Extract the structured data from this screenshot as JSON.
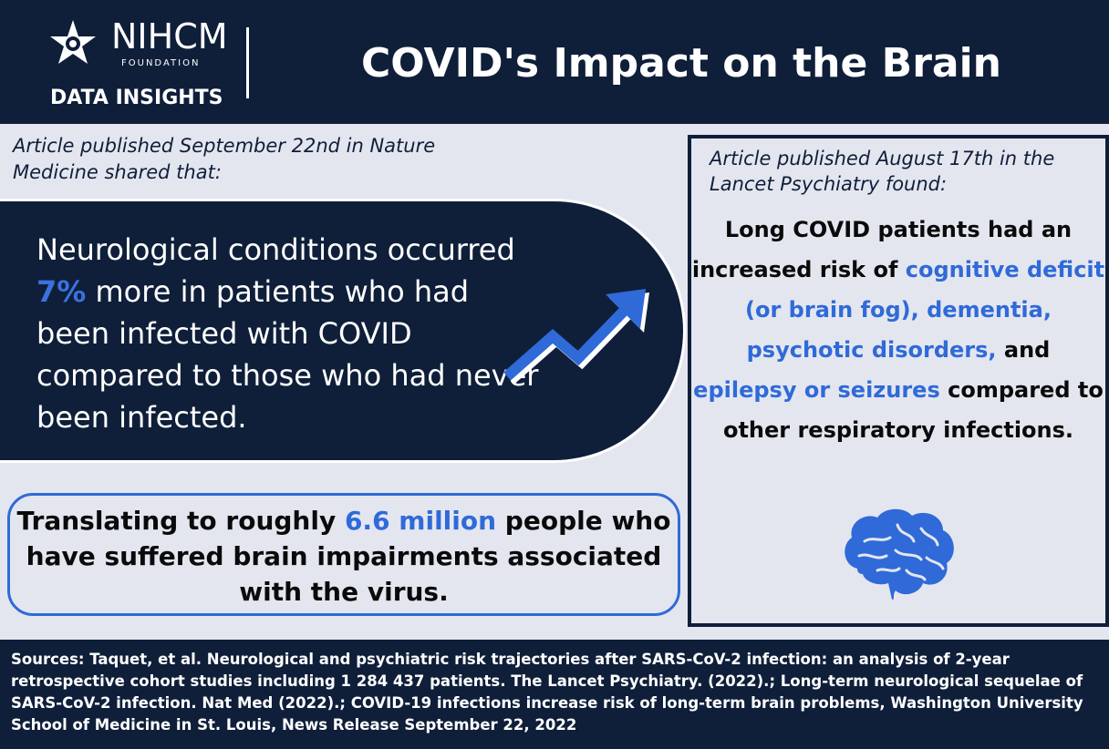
{
  "header": {
    "logo_name": "NIHCM",
    "logo_sub": "FOUNDATION",
    "logo_tagline": "DATA INSIGHTS",
    "title": "COVID's Impact on the Brain"
  },
  "left": {
    "intro": "Article published September 22nd in Nature Medicine shared that:",
    "pill": {
      "line1": "Neurological conditions occurred",
      "percent": "7%",
      "line2_rest": " more in patients who had been infected with COVID compared to those who had never been infected."
    },
    "stat": {
      "prefix": "Translating to roughly ",
      "highlight": "6.6 million",
      "suffix": " people who have suffered brain impairments associated with the virus."
    }
  },
  "right": {
    "intro": "Article published August 17th in the Lancet Psychiatry found:",
    "main_prefix": "Long COVID patients had an increased risk of ",
    "hl1": "cognitive deficit (or brain fog), dementia, psychotic disorders,",
    "mid": " and ",
    "hl2": "epilepsy or seizures",
    "suffix": " compared to other respiratory infections."
  },
  "footer": {
    "sources": "Sources: Taquet, et al. Neurological and psychiatric risk trajectories after SARS-CoV-2 infection: an analysis of 2-year retrospective cohort studies including 1 284 437 patients. The Lancet Psychiatry. (2022).; Long-term neurological sequelae of SARS-CoV-2 infection. Nat Med (2022).; COVID-19 infections increase risk of long-term brain problems, Washington University School of Medicine in St. Louis, News Release September 22, 2022"
  },
  "icons": {
    "logo": "star-logo-icon",
    "trend": "trend-arrow-icon",
    "brain": "brain-icon"
  },
  "colors": {
    "navy": "#0f1f3a",
    "accent": "#2f6ad8",
    "background": "#e4e6ef"
  }
}
